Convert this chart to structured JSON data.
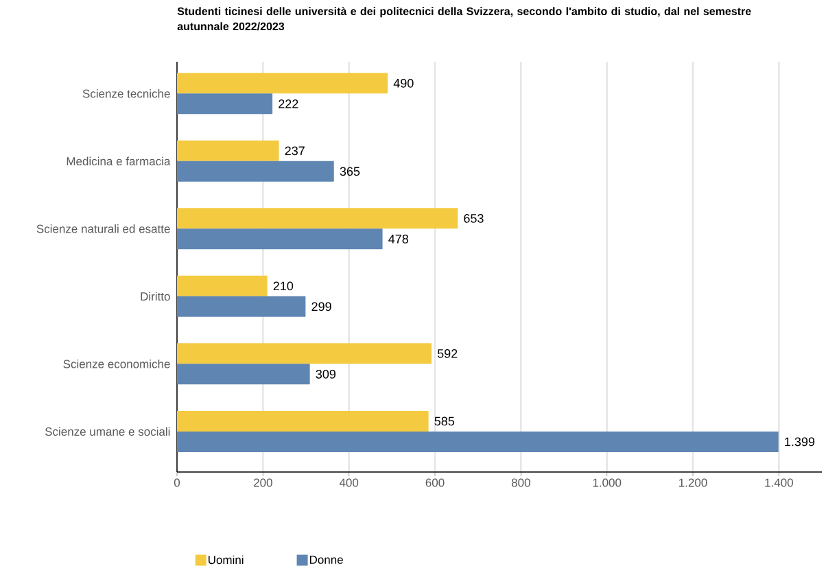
{
  "chart_data": {
    "type": "bar",
    "orientation": "horizontal",
    "title": "Studenti ticinesi delle università e dei politecnici della Svizzera, secondo l'ambito di studio, dal nel semestre autunnale 2022/2023",
    "categories": [
      "Scienze tecniche",
      "Medicina e farmacia",
      "Scienze naturali ed esatte",
      "Diritto",
      "Scienze economiche",
      "Scienze umane e sociali"
    ],
    "series": [
      {
        "name": "Uomini",
        "color": "#f4cb40",
        "values": [
          490,
          237,
          653,
          210,
          592,
          585
        ],
        "value_labels": [
          "490",
          "237",
          "653",
          "210",
          "592",
          "585"
        ]
      },
      {
        "name": "Donne",
        "color": "#5f86b3",
        "values": [
          222,
          365,
          478,
          299,
          309,
          1399
        ],
        "value_labels": [
          "222",
          "365",
          "478",
          "299",
          "309",
          "1.399"
        ]
      }
    ],
    "xlim": [
      0,
      1500
    ],
    "xticks": [
      0,
      200,
      400,
      600,
      800,
      {
        "value": 1000,
        "label": "1.000"
      },
      {
        "value": 1200,
        "label": "1.200"
      },
      {
        "value": 1400,
        "label": "1.400"
      }
    ],
    "grid": "x",
    "legend": "bottom"
  }
}
